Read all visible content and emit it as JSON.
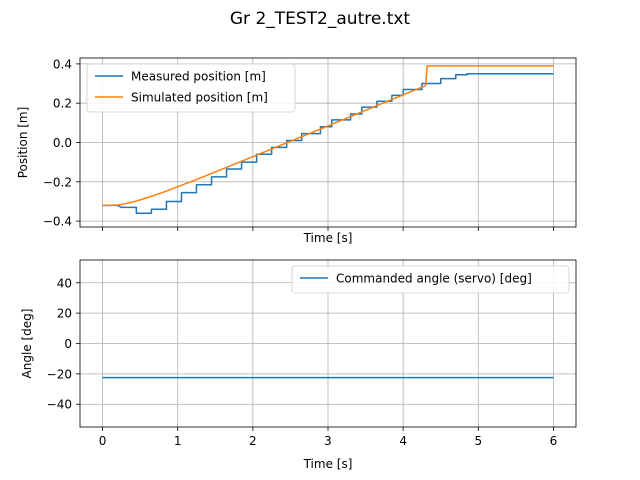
{
  "figure": {
    "title": "Gr 2_TEST2_autre.txt"
  },
  "chart_data": [
    {
      "type": "line",
      "title": "",
      "xlabel": "Time [s]",
      "ylabel": "Position [m]",
      "xlim": [
        -0.3,
        6.3
      ],
      "ylim": [
        -0.43,
        0.43
      ],
      "xticks": [
        0,
        1,
        2,
        3,
        4,
        5,
        6
      ],
      "xticks_labeled": false,
      "yticks": [
        -0.4,
        -0.2,
        0.0,
        0.2,
        0.4
      ],
      "ytick_labels": [
        "−0.4",
        "−0.2",
        "0.0",
        "0.2",
        "0.4"
      ],
      "grid": true,
      "legend_position": "top-left",
      "series": [
        {
          "name": "Measured position [m]",
          "color": "#1f77b4",
          "style": "step",
          "points": [
            [
              0.0,
              -0.32
            ],
            [
              0.2,
              -0.32
            ],
            [
              0.25,
              -0.33
            ],
            [
              0.45,
              -0.33
            ],
            [
              0.45,
              -0.36
            ],
            [
              0.65,
              -0.36
            ],
            [
              0.65,
              -0.34
            ],
            [
              0.85,
              -0.34
            ],
            [
              0.85,
              -0.3
            ],
            [
              1.05,
              -0.3
            ],
            [
              1.05,
              -0.255
            ],
            [
              1.25,
              -0.255
            ],
            [
              1.25,
              -0.215
            ],
            [
              1.45,
              -0.215
            ],
            [
              1.45,
              -0.175
            ],
            [
              1.65,
              -0.175
            ],
            [
              1.65,
              -0.135
            ],
            [
              1.85,
              -0.135
            ],
            [
              1.85,
              -0.1
            ],
            [
              2.05,
              -0.1
            ],
            [
              2.05,
              -0.06
            ],
            [
              2.25,
              -0.06
            ],
            [
              2.25,
              -0.025
            ],
            [
              2.45,
              -0.025
            ],
            [
              2.45,
              0.01
            ],
            [
              2.65,
              0.01
            ],
            [
              2.65,
              0.045
            ],
            [
              2.9,
              0.045
            ],
            [
              2.9,
              0.08
            ],
            [
              3.05,
              0.08
            ],
            [
              3.05,
              0.115
            ],
            [
              3.3,
              0.115
            ],
            [
              3.3,
              0.145
            ],
            [
              3.45,
              0.145
            ],
            [
              3.45,
              0.18
            ],
            [
              3.65,
              0.18
            ],
            [
              3.65,
              0.21
            ],
            [
              3.85,
              0.21
            ],
            [
              3.85,
              0.24
            ],
            [
              4.0,
              0.24
            ],
            [
              4.0,
              0.27
            ],
            [
              4.25,
              0.27
            ],
            [
              4.25,
              0.3
            ],
            [
              4.5,
              0.3
            ],
            [
              4.5,
              0.325
            ],
            [
              4.7,
              0.325
            ],
            [
              4.7,
              0.345
            ],
            [
              4.85,
              0.345
            ],
            [
              4.85,
              0.35
            ],
            [
              6.0,
              0.35
            ]
          ]
        },
        {
          "name": "Simulated position [m]",
          "color": "#ff7f0e",
          "style": "line",
          "points": [
            [
              0.0,
              -0.32
            ],
            [
              0.1,
              -0.32
            ],
            [
              0.2,
              -0.318
            ],
            [
              0.3,
              -0.312
            ],
            [
              0.4,
              -0.303
            ],
            [
              0.5,
              -0.292
            ],
            [
              0.6,
              -0.28
            ],
            [
              0.8,
              -0.254
            ],
            [
              1.0,
              -0.225
            ],
            [
              1.2,
              -0.196
            ],
            [
              1.5,
              -0.15
            ],
            [
              2.0,
              -0.072
            ],
            [
              2.5,
              0.006
            ],
            [
              3.0,
              0.084
            ],
            [
              3.5,
              0.164
            ],
            [
              4.0,
              0.242
            ],
            [
              4.3,
              0.29
            ],
            [
              4.32,
              0.39
            ],
            [
              6.0,
              0.39
            ]
          ]
        }
      ]
    },
    {
      "type": "line",
      "title": "",
      "xlabel": "Time [s]",
      "ylabel": "Angle [deg]",
      "xlim": [
        -0.3,
        6.3
      ],
      "ylim": [
        -55,
        55
      ],
      "xticks": [
        0,
        1,
        2,
        3,
        4,
        5,
        6
      ],
      "xtick_labels": [
        "0",
        "1",
        "2",
        "3",
        "4",
        "5",
        "6"
      ],
      "yticks": [
        -40,
        -20,
        0,
        20,
        40
      ],
      "ytick_labels": [
        "−40",
        "−20",
        "0",
        "20",
        "40"
      ],
      "grid": true,
      "legend_position": "top-right",
      "series": [
        {
          "name": "Commanded angle (servo) [deg]",
          "color": "#1f77b4",
          "style": "line",
          "points": [
            [
              0.0,
              -22.5
            ],
            [
              6.0,
              -22.5
            ]
          ]
        }
      ]
    }
  ]
}
